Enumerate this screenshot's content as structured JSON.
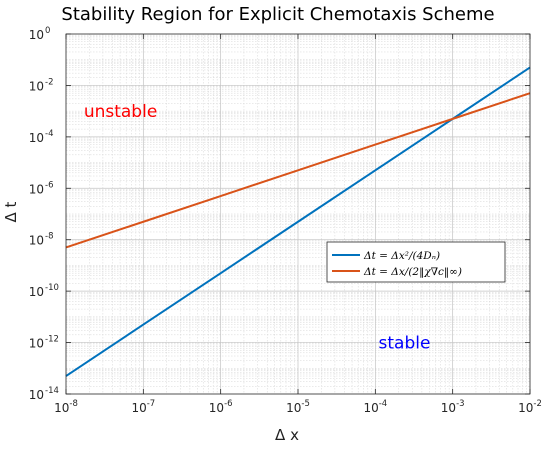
{
  "chart_data": {
    "type": "line",
    "title": "Stability Region for Explicit Chemotaxis Scheme",
    "xlabel": "Δ x",
    "ylabel": "Δ t",
    "xscale": "log",
    "yscale": "log",
    "xlim": [
      1e-08,
      0.01
    ],
    "ylim": [
      1e-14,
      1
    ],
    "grid": true,
    "minor_grid": true,
    "legend_position": "right-center",
    "x_ticks": [
      {
        "base": "10",
        "exp": "-8",
        "value": 1e-08
      },
      {
        "base": "10",
        "exp": "-7",
        "value": 1e-07
      },
      {
        "base": "10",
        "exp": "-6",
        "value": 1e-06
      },
      {
        "base": "10",
        "exp": "-5",
        "value": 1e-05
      },
      {
        "base": "10",
        "exp": "-4",
        "value": 0.0001
      },
      {
        "base": "10",
        "exp": "-3",
        "value": 0.001
      },
      {
        "base": "10",
        "exp": "-2",
        "value": 0.01
      }
    ],
    "y_ticks": [
      {
        "base": "10",
        "exp": "-14",
        "value": 1e-14
      },
      {
        "base": "10",
        "exp": "-12",
        "value": 1e-12
      },
      {
        "base": "10",
        "exp": "-10",
        "value": 1e-10
      },
      {
        "base": "10",
        "exp": "-8",
        "value": 1e-08
      },
      {
        "base": "10",
        "exp": "-6",
        "value": 1e-06
      },
      {
        "base": "10",
        "exp": "-4",
        "value": 0.0001
      },
      {
        "base": "10",
        "exp": "-2",
        "value": 0.01
      },
      {
        "base": "10",
        "exp": "0",
        "value": 1
      }
    ],
    "series": [
      {
        "name": "Δt = Δx²/(4Dₙ)",
        "color": "#0072BD",
        "x": [
          1e-08,
          1e-07,
          1e-06,
          1e-05,
          0.0001,
          0.001,
          0.01
        ],
        "y": [
          5e-14,
          5e-12,
          5e-10,
          5e-08,
          5e-06,
          0.0005,
          0.05
        ]
      },
      {
        "name": "Δt = Δx/(2‖χ∇c‖∞)",
        "color": "#D95319",
        "x": [
          1e-08,
          1e-07,
          1e-06,
          1e-05,
          0.0001,
          0.001,
          0.01
        ],
        "y": [
          5e-09,
          5e-08,
          5e-07,
          5e-06,
          5e-05,
          0.0005,
          0.005
        ]
      }
    ],
    "annotations": [
      {
        "text": "unstable",
        "color": "#FF0000",
        "x": 1.7e-08,
        "y": 0.001
      },
      {
        "text": "stable",
        "color": "#0000FF",
        "x": 0.00011,
        "y": 1e-12
      }
    ]
  }
}
